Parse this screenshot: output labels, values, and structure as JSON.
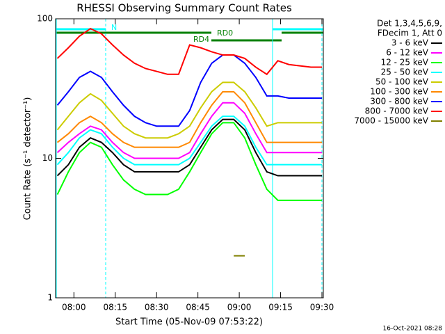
{
  "chart_data": {
    "type": "line",
    "title": "RHESSI Observing Summary Count Rates",
    "x_label": "Start Time (05-Nov-09 07:53:22)",
    "y_label": "Count Rate (s⁻¹ detector⁻¹)",
    "log_y": true,
    "ylim": [
      1,
      100
    ],
    "yticks": [
      1,
      10,
      100
    ],
    "xlim": [
      473.37,
      570.5
    ],
    "xticks": [
      {
        "value": 480,
        "label": "08:00"
      },
      {
        "value": 495,
        "label": "08:15"
      },
      {
        "value": 510,
        "label": "08:30"
      },
      {
        "value": 525,
        "label": "08:45"
      },
      {
        "value": 540,
        "label": "09:00"
      },
      {
        "value": 555,
        "label": "09:15"
      },
      {
        "value": 570,
        "label": "09:30"
      }
    ],
    "x": [
      474,
      478,
      482,
      486,
      490,
      494,
      498,
      502,
      506,
      510,
      514,
      518,
      522,
      526,
      530,
      534,
      538,
      542,
      546,
      550,
      554,
      558,
      562,
      566,
      570
    ],
    "legend_header": [
      "Det 1,3,4,5,6,9,",
      "FDecim 1, Att 0"
    ],
    "annotations": [
      "N",
      "RD4",
      "RD0"
    ],
    "footer": "16-Oct-2021 08:28",
    "series": [
      {
        "name": "3 - 6 keV",
        "color": "#000000",
        "values": [
          7.5,
          9,
          12,
          14,
          13,
          11,
          9,
          8,
          8,
          8,
          8,
          8,
          9,
          12,
          16,
          19,
          19,
          16,
          11,
          8,
          7.5,
          7.5,
          7.5,
          7.5,
          7.5
        ]
      },
      {
        "name": "6 - 12 keV",
        "color": "#ff00ff",
        "values": [
          11,
          13,
          15,
          17,
          16,
          13,
          11,
          10,
          10,
          10,
          10,
          10,
          11,
          15,
          20,
          25,
          25,
          21,
          15,
          11,
          11,
          11,
          11,
          11,
          11
        ]
      },
      {
        "name": "12 - 25 keV",
        "color": "#00ff00",
        "values": [
          5.5,
          8,
          11,
          13,
          12,
          9,
          7,
          6,
          5.5,
          5.5,
          5.5,
          6,
          8,
          11,
          15,
          18,
          18,
          14,
          9,
          6,
          5,
          5,
          5,
          5,
          5
        ]
      },
      {
        "name": "25 - 50 keV",
        "color": "#00ffff",
        "values": [
          9,
          11,
          14,
          16,
          15,
          12,
          10,
          9,
          9,
          9,
          9,
          9,
          10,
          13,
          17,
          20,
          20,
          17,
          12,
          9,
          9,
          9,
          9,
          9,
          9
        ]
      },
      {
        "name": "50 - 100 keV",
        "color": "#cccc00",
        "values": [
          16,
          20,
          25,
          29,
          26,
          21,
          17,
          15,
          14,
          14,
          14,
          15,
          17,
          23,
          30,
          35,
          35,
          30,
          23,
          17,
          18,
          18,
          18,
          18,
          18
        ]
      },
      {
        "name": "100 - 300 keV",
        "color": "#ff8800",
        "values": [
          13,
          15,
          18,
          20,
          18,
          15,
          13,
          12,
          12,
          12,
          12,
          12,
          13,
          18,
          24,
          30,
          30,
          25,
          18,
          13,
          13,
          13,
          13,
          13,
          13
        ]
      },
      {
        "name": "300 - 800 keV",
        "color": "#0000ff",
        "values": [
          24,
          30,
          38,
          42,
          38,
          30,
          24,
          20,
          18,
          17,
          17,
          17,
          22,
          35,
          48,
          55,
          55,
          48,
          38,
          28,
          28,
          27,
          27,
          27,
          27
        ]
      },
      {
        "name": "800 - 7000 keV",
        "color": "#ff0000",
        "values": [
          52,
          62,
          75,
          85,
          78,
          65,
          55,
          48,
          44,
          42,
          40,
          40,
          65,
          62,
          58,
          55,
          55,
          52,
          45,
          40,
          50,
          47,
          46,
          45,
          45
        ]
      },
      {
        "name": "7000 - 15000 keV",
        "color": "#808000",
        "values": [
          null,
          null,
          null,
          null,
          null,
          null,
          null,
          null,
          null,
          null,
          null,
          null,
          null,
          null,
          null,
          null,
          2,
          2,
          null,
          null,
          null,
          null,
          null,
          null,
          null
        ]
      }
    ]
  }
}
